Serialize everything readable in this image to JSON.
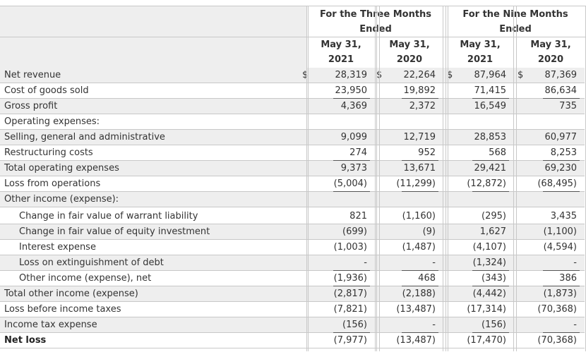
{
  "header": {
    "group_three_months": "For the Three Months Ended",
    "group_nine_months": "For the Nine Months Ended",
    "period_labels": [
      "May 31,",
      "May 31,",
      "May 31,",
      "May 31,"
    ],
    "period_years": [
      "2021",
      "2020",
      "2021",
      "2020"
    ]
  },
  "currency_symbol": "$",
  "rows": [
    {
      "label": "Net revenue",
      "values": [
        "28,319",
        "22,264",
        "87,964",
        "87,369"
      ]
    },
    {
      "label": "Cost of goods sold",
      "values": [
        "23,950",
        "19,892",
        "71,415",
        "86,634"
      ]
    },
    {
      "label": "Gross profit",
      "values": [
        "4,369",
        "2,372",
        "16,549",
        "735"
      ]
    },
    {
      "label": "Operating expenses:",
      "values": [
        "",
        "",
        "",
        ""
      ]
    },
    {
      "label": "Selling, general and administrative",
      "values": [
        "9,099",
        "12,719",
        "28,853",
        "60,977"
      ]
    },
    {
      "label": "Restructuring costs",
      "values": [
        "274",
        "952",
        "568",
        "8,253"
      ]
    },
    {
      "label": "Total operating expenses",
      "values": [
        "9,373",
        "13,671",
        "29,421",
        "69,230"
      ]
    },
    {
      "label": "Loss from operations",
      "values": [
        "(5,004)",
        "(11,299)",
        "(12,872)",
        "(68,495)"
      ]
    },
    {
      "label": "Other income (expense):",
      "values": [
        "",
        "",
        "",
        ""
      ]
    },
    {
      "label": "Change in fair value of warrant liability",
      "values": [
        "821",
        "(1,160)",
        "(295)",
        "3,435"
      ]
    },
    {
      "label": "Change in fair value of equity investment",
      "values": [
        "(699)",
        "(9)",
        "1,627",
        "(1,100)"
      ]
    },
    {
      "label": "Interest expense",
      "values": [
        "(1,003)",
        "(1,487)",
        "(4,107)",
        "(4,594)"
      ]
    },
    {
      "label": "Loss on extinguishment of debt",
      "values": [
        "-",
        "-",
        "(1,324)",
        "-"
      ]
    },
    {
      "label": "Other income (expense), net",
      "values": [
        "(1,936)",
        "468",
        "(343)",
        "386"
      ]
    },
    {
      "label": "Total other income (expense)",
      "values": [
        "(2,817)",
        "(2,188)",
        "(4,442)",
        "(1,873)"
      ]
    },
    {
      "label": "Loss before income taxes",
      "values": [
        "(7,821)",
        "(13,487)",
        "(17,314)",
        "(70,368)"
      ]
    },
    {
      "label": "Income tax expense",
      "values": [
        "(156)",
        "-",
        "(156)",
        "-"
      ]
    },
    {
      "label": "Net loss",
      "values": [
        "(7,977)",
        "(13,487)",
        "(17,470)",
        "(70,368)"
      ]
    }
  ]
}
